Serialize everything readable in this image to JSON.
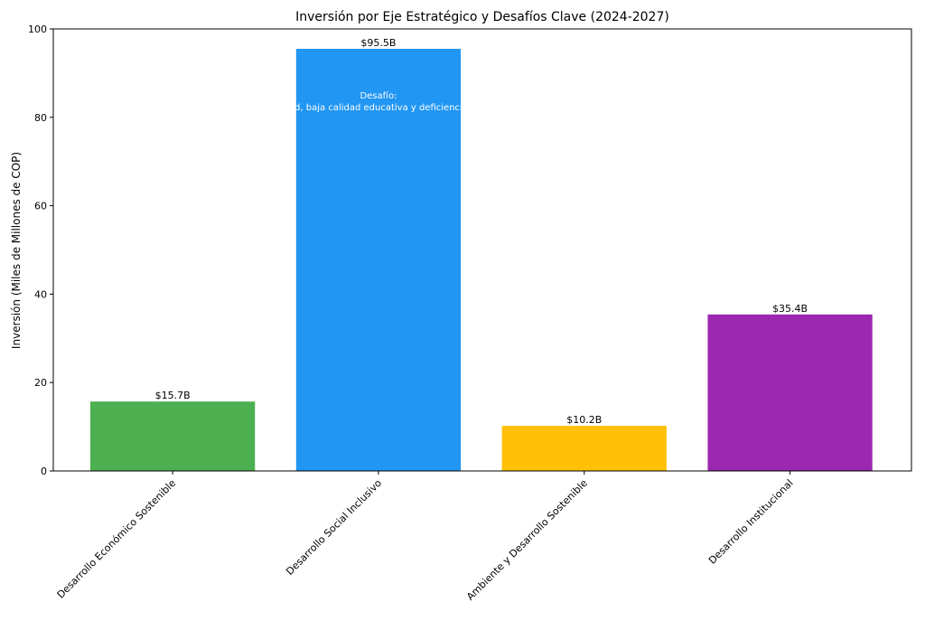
{
  "chart_data": {
    "type": "bar",
    "title": "Inversión por Eje Estratégico y Desafíos Clave (2024-2027)",
    "xlabel": "",
    "ylabel": "Inversión (Miles de Millones de COP)",
    "ylim": [
      0,
      100
    ],
    "yticks": [
      0,
      20,
      40,
      60,
      80,
      100
    ],
    "categories": [
      "Desarrollo Económico Sostenible",
      "Desarrollo Social Inclusivo",
      "Ambiente y Desarrollo Sostenible",
      "Desarrollo Institucional"
    ],
    "values": [
      15.7,
      95.5,
      10.2,
      35.4
    ],
    "data_labels": [
      "$15.7B",
      "$95.5B",
      "$10.2B",
      "$35.4B"
    ],
    "colors": [
      "#4caf50",
      "#2196f3",
      "#ffc107",
      "#9c27b0"
    ],
    "annotation": {
      "title": "Desafío:",
      "text": "d, baja calidad educativa y deficienci"
    },
    "grid": false
  }
}
